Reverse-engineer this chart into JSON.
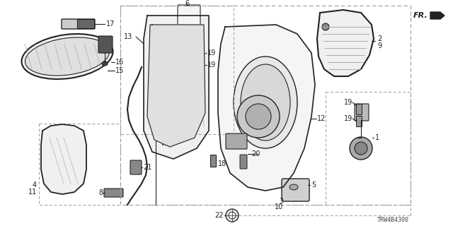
{
  "bg_color": "#ffffff",
  "line_color": "#222222",
  "dash_color": "#999999",
  "gray_fill": "#e8e8e8",
  "dark_fill": "#555555",
  "diagram_code": "TRW4B4300",
  "figsize": [
    6.4,
    3.2
  ],
  "dpi": 100
}
